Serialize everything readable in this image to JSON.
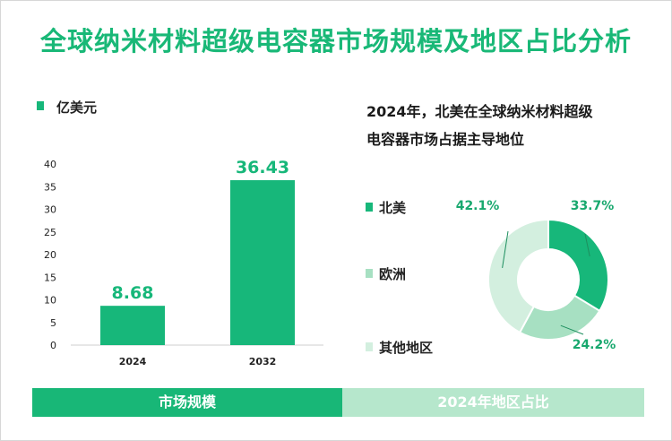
{
  "title": "全球纳米材料超级电容器市场规模及地区占比分析",
  "colors": {
    "accent": "#18b777",
    "bar": "#17b77a",
    "pie_na": "#17b77a",
    "pie_eu": "#a7e0c2",
    "pie_other": "#d3efdf"
  },
  "left_chart": {
    "unit": "亿美元",
    "footer": "市场规模"
  },
  "right_chart": {
    "title_line1": "2024年，北美在全球纳米材料超级",
    "title_line2": "电容器市场占据主导地位",
    "footer": "2024年地区占比",
    "legend": [
      "北美",
      "欧洲",
      "其他地区"
    ]
  },
  "chart_data": [
    {
      "type": "bar",
      "categories": [
        "2024",
        "2032"
      ],
      "values": [
        8.68,
        36.43
      ],
      "value_labels": [
        "8.68",
        "36.43"
      ],
      "ylim": [
        0,
        40
      ],
      "yticks": [
        0,
        5,
        10,
        15,
        20,
        25,
        30,
        35,
        40
      ],
      "ylabel": "亿美元",
      "grid": false
    },
    {
      "type": "pie",
      "donut": true,
      "labels": [
        "北美",
        "欧洲",
        "其他地区"
      ],
      "values": [
        33.7,
        24.2,
        42.1
      ],
      "value_labels": [
        "33.7%",
        "24.2%",
        "42.1%"
      ],
      "legend_position": "left"
    }
  ]
}
